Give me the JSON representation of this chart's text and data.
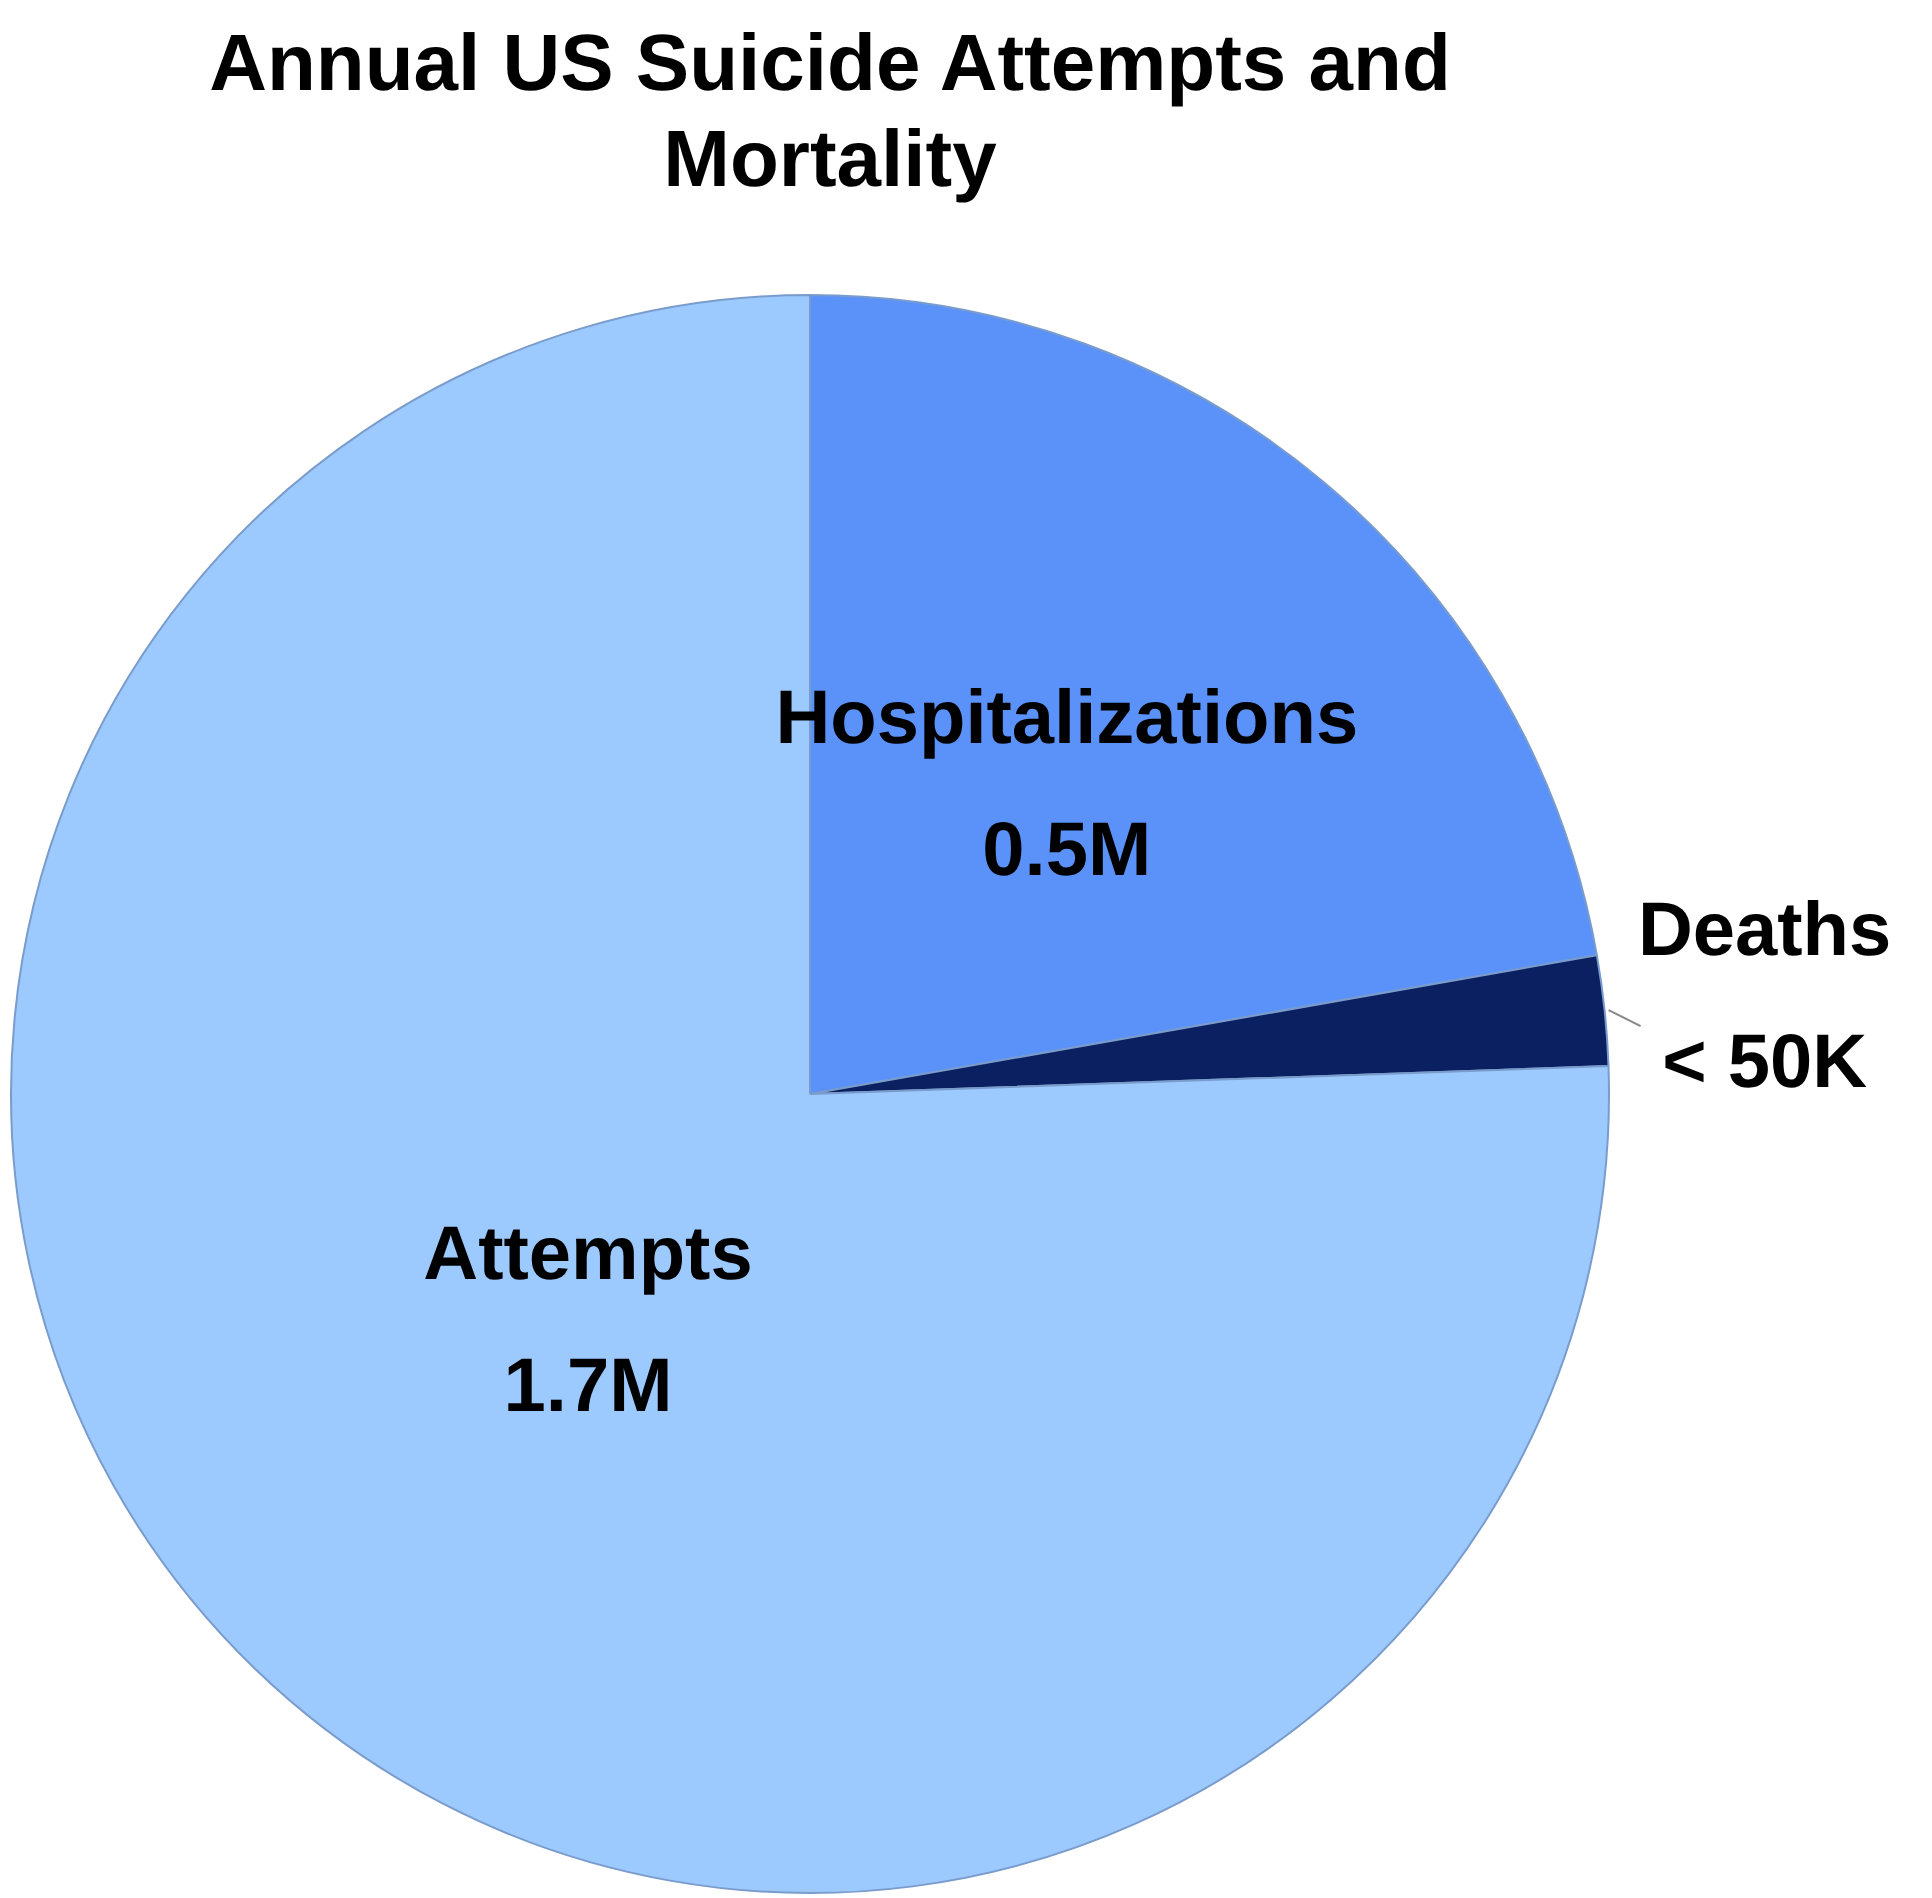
{
  "chart_data": {
    "type": "pie",
    "title": "Annual US Suicide Attempts and Mortality",
    "categories": [
      "Hospitalizations",
      "Deaths",
      "Attempts"
    ],
    "values": [
      0.5,
      0.05,
      1.7
    ],
    "value_labels": [
      "0.5M",
      "< 50K",
      "1.7M"
    ],
    "colors": [
      "#5b92f9",
      "#0a2060",
      "#9ccaff"
    ],
    "legend": false
  }
}
